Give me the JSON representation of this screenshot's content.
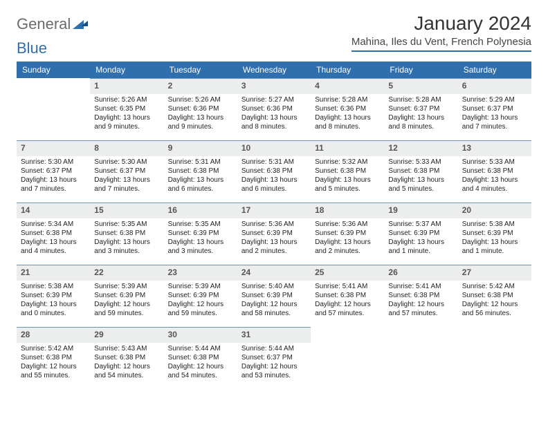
{
  "logo": {
    "word1": "General",
    "word2": "Blue"
  },
  "title": "January 2024",
  "location": "Mahina, Iles du Vent, French Polynesia",
  "colors": {
    "accent": "#2f6fae",
    "header_bg": "#2f6fae",
    "daynum_bg": "#eceded",
    "rule": "#6b92b9"
  },
  "weekdays": [
    "Sunday",
    "Monday",
    "Tuesday",
    "Wednesday",
    "Thursday",
    "Friday",
    "Saturday"
  ],
  "start_offset": 1,
  "days": [
    {
      "n": "1",
      "sr": "5:26 AM",
      "ss": "6:35 PM",
      "dl": "13 hours and 9 minutes."
    },
    {
      "n": "2",
      "sr": "5:26 AM",
      "ss": "6:36 PM",
      "dl": "13 hours and 9 minutes."
    },
    {
      "n": "3",
      "sr": "5:27 AM",
      "ss": "6:36 PM",
      "dl": "13 hours and 8 minutes."
    },
    {
      "n": "4",
      "sr": "5:28 AM",
      "ss": "6:36 PM",
      "dl": "13 hours and 8 minutes."
    },
    {
      "n": "5",
      "sr": "5:28 AM",
      "ss": "6:37 PM",
      "dl": "13 hours and 8 minutes."
    },
    {
      "n": "6",
      "sr": "5:29 AM",
      "ss": "6:37 PM",
      "dl": "13 hours and 7 minutes."
    },
    {
      "n": "7",
      "sr": "5:30 AM",
      "ss": "6:37 PM",
      "dl": "13 hours and 7 minutes."
    },
    {
      "n": "8",
      "sr": "5:30 AM",
      "ss": "6:37 PM",
      "dl": "13 hours and 7 minutes."
    },
    {
      "n": "9",
      "sr": "5:31 AM",
      "ss": "6:38 PM",
      "dl": "13 hours and 6 minutes."
    },
    {
      "n": "10",
      "sr": "5:31 AM",
      "ss": "6:38 PM",
      "dl": "13 hours and 6 minutes."
    },
    {
      "n": "11",
      "sr": "5:32 AM",
      "ss": "6:38 PM",
      "dl": "13 hours and 5 minutes."
    },
    {
      "n": "12",
      "sr": "5:33 AM",
      "ss": "6:38 PM",
      "dl": "13 hours and 5 minutes."
    },
    {
      "n": "13",
      "sr": "5:33 AM",
      "ss": "6:38 PM",
      "dl": "13 hours and 4 minutes."
    },
    {
      "n": "14",
      "sr": "5:34 AM",
      "ss": "6:38 PM",
      "dl": "13 hours and 4 minutes."
    },
    {
      "n": "15",
      "sr": "5:35 AM",
      "ss": "6:38 PM",
      "dl": "13 hours and 3 minutes."
    },
    {
      "n": "16",
      "sr": "5:35 AM",
      "ss": "6:39 PM",
      "dl": "13 hours and 3 minutes."
    },
    {
      "n": "17",
      "sr": "5:36 AM",
      "ss": "6:39 PM",
      "dl": "13 hours and 2 minutes."
    },
    {
      "n": "18",
      "sr": "5:36 AM",
      "ss": "6:39 PM",
      "dl": "13 hours and 2 minutes."
    },
    {
      "n": "19",
      "sr": "5:37 AM",
      "ss": "6:39 PM",
      "dl": "13 hours and 1 minute."
    },
    {
      "n": "20",
      "sr": "5:38 AM",
      "ss": "6:39 PM",
      "dl": "13 hours and 1 minute."
    },
    {
      "n": "21",
      "sr": "5:38 AM",
      "ss": "6:39 PM",
      "dl": "13 hours and 0 minutes."
    },
    {
      "n": "22",
      "sr": "5:39 AM",
      "ss": "6:39 PM",
      "dl": "12 hours and 59 minutes."
    },
    {
      "n": "23",
      "sr": "5:39 AM",
      "ss": "6:39 PM",
      "dl": "12 hours and 59 minutes."
    },
    {
      "n": "24",
      "sr": "5:40 AM",
      "ss": "6:39 PM",
      "dl": "12 hours and 58 minutes."
    },
    {
      "n": "25",
      "sr": "5:41 AM",
      "ss": "6:38 PM",
      "dl": "12 hours and 57 minutes."
    },
    {
      "n": "26",
      "sr": "5:41 AM",
      "ss": "6:38 PM",
      "dl": "12 hours and 57 minutes."
    },
    {
      "n": "27",
      "sr": "5:42 AM",
      "ss": "6:38 PM",
      "dl": "12 hours and 56 minutes."
    },
    {
      "n": "28",
      "sr": "5:42 AM",
      "ss": "6:38 PM",
      "dl": "12 hours and 55 minutes."
    },
    {
      "n": "29",
      "sr": "5:43 AM",
      "ss": "6:38 PM",
      "dl": "12 hours and 54 minutes."
    },
    {
      "n": "30",
      "sr": "5:44 AM",
      "ss": "6:38 PM",
      "dl": "12 hours and 54 minutes."
    },
    {
      "n": "31",
      "sr": "5:44 AM",
      "ss": "6:37 PM",
      "dl": "12 hours and 53 minutes."
    }
  ],
  "labels": {
    "sunrise": "Sunrise:",
    "sunset": "Sunset:",
    "daylight": "Daylight:"
  }
}
